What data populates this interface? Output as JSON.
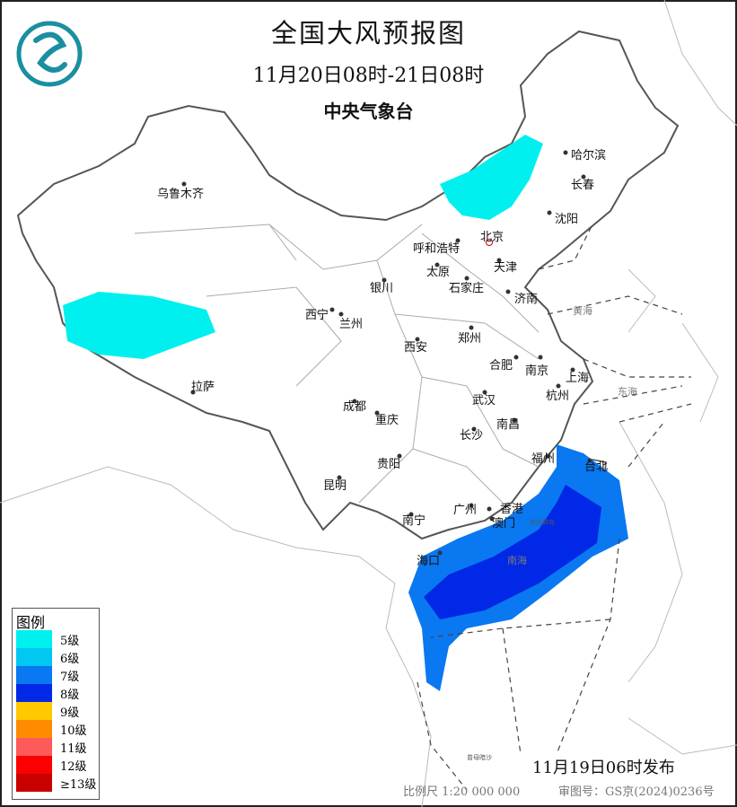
{
  "header": {
    "title": "全国大风预报图",
    "valid_period": "11月20日08时-21日08时",
    "issuer": "中央气象台"
  },
  "logo": {
    "name": "cma-logo",
    "color": "#1a8fa0"
  },
  "legend": {
    "title": "图例",
    "items": [
      {
        "label": "5级",
        "color": "#00f0f0"
      },
      {
        "label": "6级",
        "color": "#00c8f0"
      },
      {
        "label": "7级",
        "color": "#0a78f0"
      },
      {
        "label": "8级",
        "color": "#0028e6"
      },
      {
        "label": "9级",
        "color": "#ffc800"
      },
      {
        "label": "10级",
        "color": "#ff8c00"
      },
      {
        "label": "11级",
        "color": "#ff5a5a"
      },
      {
        "label": "12级",
        "color": "#fa0000"
      },
      {
        "label": "≥13级",
        "color": "#c80000"
      }
    ]
  },
  "cities": [
    {
      "name": "乌鲁木齐"
    },
    {
      "name": "哈尔滨"
    },
    {
      "name": "长春"
    },
    {
      "name": "沈阳"
    },
    {
      "name": "北京",
      "capital": true,
      "color": "#cc0000"
    },
    {
      "name": "呼和浩特"
    },
    {
      "name": "天津"
    },
    {
      "name": "太原"
    },
    {
      "name": "石家庄"
    },
    {
      "name": "济南"
    },
    {
      "name": "银川"
    },
    {
      "name": "西宁"
    },
    {
      "name": "兰州"
    },
    {
      "name": "郑州"
    },
    {
      "name": "西安"
    },
    {
      "name": "合肥"
    },
    {
      "name": "南京"
    },
    {
      "name": "上海"
    },
    {
      "name": "杭州"
    },
    {
      "name": "拉萨"
    },
    {
      "name": "成都"
    },
    {
      "name": "武汉"
    },
    {
      "name": "重庆"
    },
    {
      "name": "南昌"
    },
    {
      "name": "长沙"
    },
    {
      "name": "福州"
    },
    {
      "name": "台北"
    },
    {
      "name": "贵阳"
    },
    {
      "name": "昆明"
    },
    {
      "name": "广州"
    },
    {
      "name": "香港"
    },
    {
      "name": "澳门"
    },
    {
      "name": "南宁"
    },
    {
      "name": "海口"
    }
  ],
  "seas": [
    {
      "name": "黄海"
    },
    {
      "name": "东海"
    },
    {
      "name": "南海"
    },
    {
      "name": "东沙群岛"
    },
    {
      "name": "曾母暗沙"
    }
  ],
  "footer": {
    "issued": "11月19日06时发布",
    "scale": "比例尺 1:20 000 000",
    "map_review_no": "审图号：GS京(2024)0236号"
  }
}
